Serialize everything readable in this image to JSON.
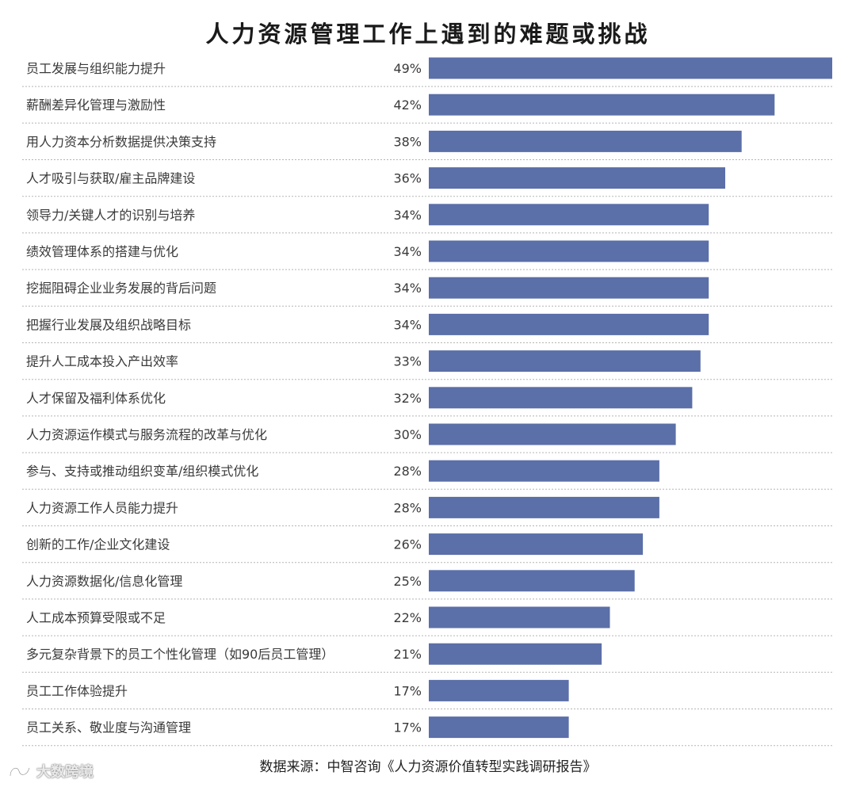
{
  "chart_data": {
    "type": "bar",
    "orientation": "horizontal",
    "title": "人力资源管理工作上遇到的难题或挑战",
    "categories": [
      "员工发展与组织能力提升",
      "薪酬差异化管理与激励性",
      "用人力资本分析数据提供决策支持",
      "人才吸引与获取/雇主品牌建设",
      "领导力/关键人才的识别与培养",
      "绩效管理体系的搭建与优化",
      "挖掘阻碍企业业务发展的背后问题",
      "把握行业发展及组织战略目标",
      "提升人工成本投入产出效率",
      "人才保留及福利体系优化",
      "人力资源运作模式与服务流程的改革与优化",
      "参与、支持或推动组织变革/组织模式优化",
      "人力资源工作人员能力提升",
      "创新的工作/企业文化建设",
      "人力资源数据化/信息化管理",
      "人工成本预算受限或不足",
      "多元复杂背景下的员工个性化管理（如90后员工管理）",
      "员工工作体验提升",
      "员工关系、敬业度与沟通管理"
    ],
    "values": [
      49,
      42,
      38,
      36,
      34,
      34,
      34,
      34,
      33,
      32,
      30,
      28,
      28,
      26,
      25,
      22,
      21,
      17,
      17
    ],
    "value_labels": [
      "49%",
      "42%",
      "38%",
      "36%",
      "34%",
      "34%",
      "34%",
      "34%",
      "33%",
      "32%",
      "30%",
      "28%",
      "28%",
      "26%",
      "25%",
      "22%",
      "21%",
      "17%",
      "17%"
    ],
    "xlim": [
      0,
      49
    ],
    "grid": false,
    "legend": false,
    "bar_color": "#5b6fa8",
    "divider_style": "dotted"
  },
  "source_text": "数据来源：中智咨询《人力资源价值转型实践调研报告》",
  "watermark": {
    "text": "大数跨境",
    "icon": "brand-logo-icon"
  }
}
